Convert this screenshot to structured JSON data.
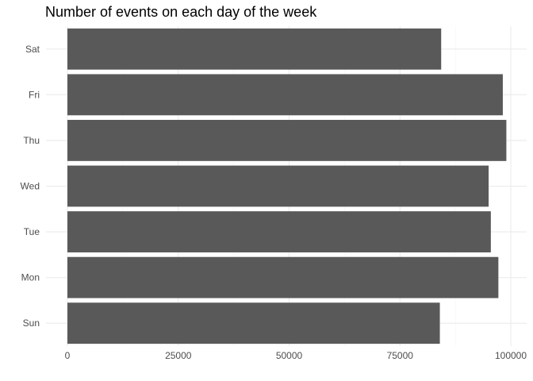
{
  "chart_data": {
    "type": "bar",
    "orientation": "horizontal",
    "title": "Number of events on each day of the week",
    "xlabel": "",
    "ylabel": "",
    "categories": [
      "Sun",
      "Mon",
      "Tue",
      "Wed",
      "Thu",
      "Fri",
      "Sat"
    ],
    "values": [
      84000,
      97200,
      95500,
      95000,
      99000,
      98200,
      84300
    ],
    "xlim": [
      0,
      103000
    ],
    "x_ticks": [
      0,
      25000,
      50000,
      75000,
      100000
    ],
    "x_tick_labels": [
      "0",
      "25000",
      "50000",
      "75000",
      "100000"
    ],
    "grid": true,
    "legend": "none",
    "bar_color": "#595959",
    "grid_major_color": "#ebebeb",
    "grid_minor_color": "#f5f5f5"
  }
}
